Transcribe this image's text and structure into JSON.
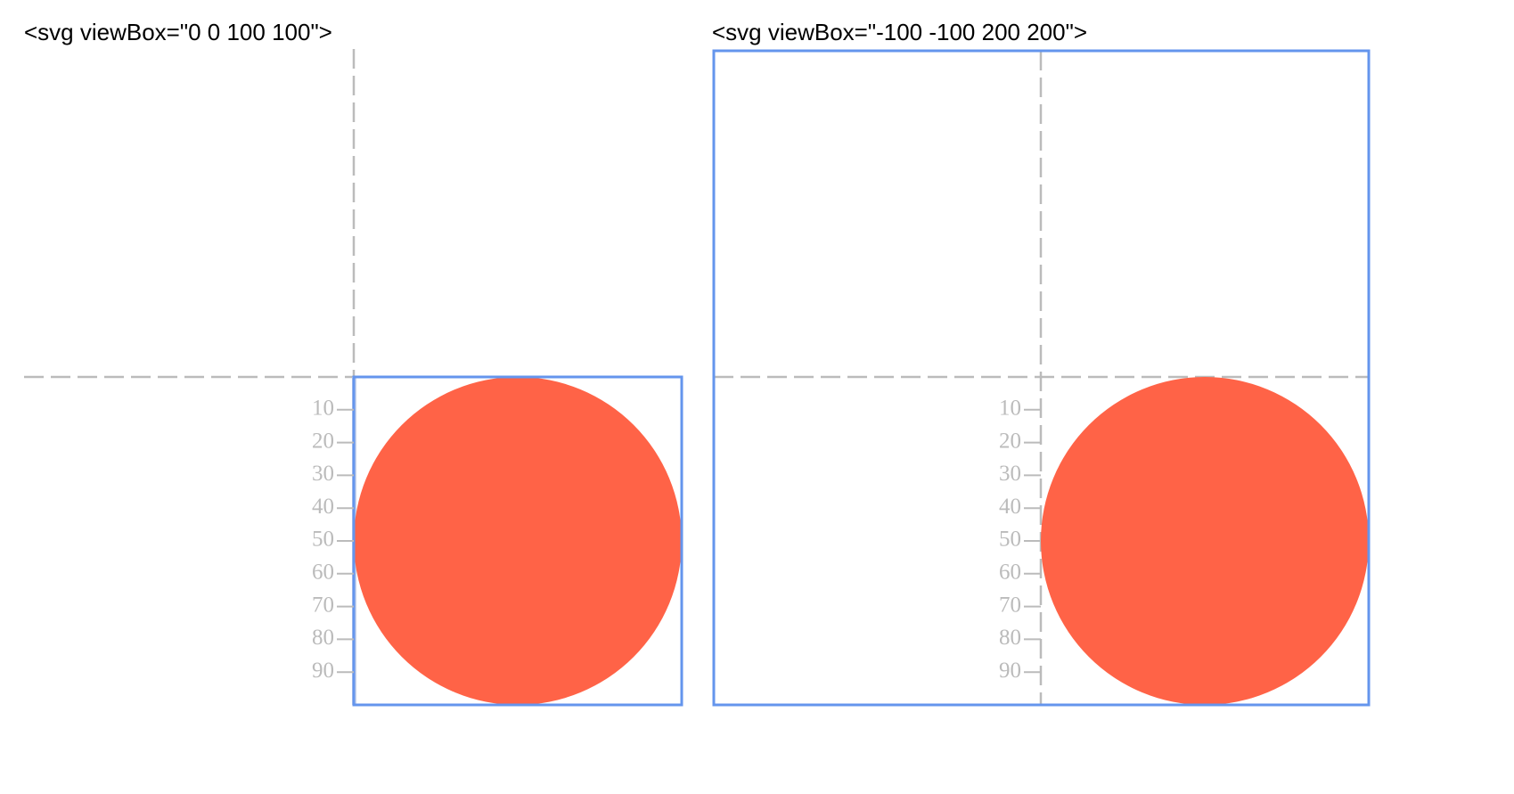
{
  "panels": [
    {
      "caption": "<svg viewBox=\"0 0 100 100\">",
      "ticks": [
        10,
        20,
        30,
        40,
        50,
        60,
        70,
        80,
        90
      ]
    },
    {
      "caption": "<svg viewBox=\"-100 -100 200 200\">",
      "ticks": [
        10,
        20,
        30,
        40,
        50,
        60,
        70,
        80,
        90
      ]
    }
  ]
}
